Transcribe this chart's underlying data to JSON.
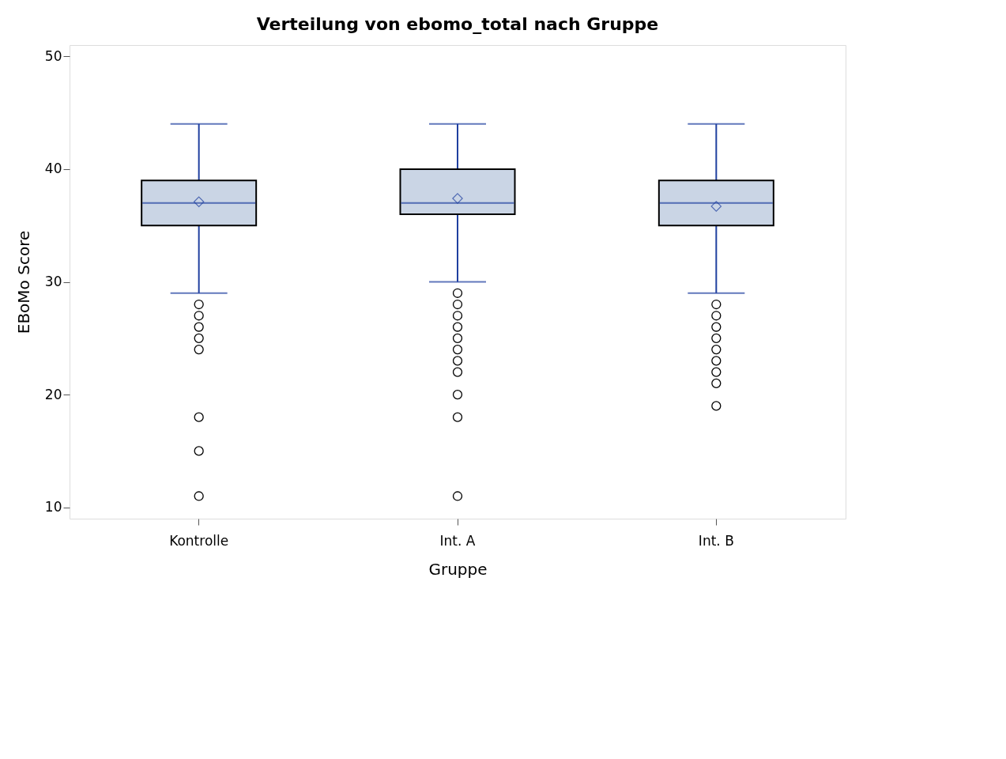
{
  "chart_data": {
    "type": "box",
    "title": "Verteilung von ebomo_total nach Gruppe",
    "xlabel": "Gruppe",
    "ylabel": "EBoMo Score",
    "categories": [
      "Kontrolle",
      "Int. A",
      "Int. B"
    ],
    "series": [
      {
        "color": "#cad5e5",
        "boxes": [
          {
            "low": 29,
            "q1": 35,
            "median": 37,
            "q3": 39,
            "high": 44,
            "mean": 37.1,
            "outliers": [
              28,
              27,
              26,
              25,
              24,
              18,
              15,
              11
            ]
          },
          {
            "low": 30,
            "q1": 36,
            "median": 37,
            "q3": 40,
            "high": 44,
            "mean": 37.4,
            "outliers": [
              29,
              28,
              27,
              26,
              25,
              24,
              23,
              22,
              20,
              18,
              11
            ]
          },
          {
            "low": 29,
            "q1": 35,
            "median": 37,
            "q3": 39,
            "high": 44,
            "mean": 36.7,
            "outliers": [
              28,
              27,
              26,
              25,
              24,
              23,
              22,
              21,
              19
            ]
          }
        ]
      }
    ],
    "ylim": [
      9,
      51
    ],
    "yticks": [
      10,
      20,
      30,
      40,
      50
    ],
    "grid": false
  }
}
